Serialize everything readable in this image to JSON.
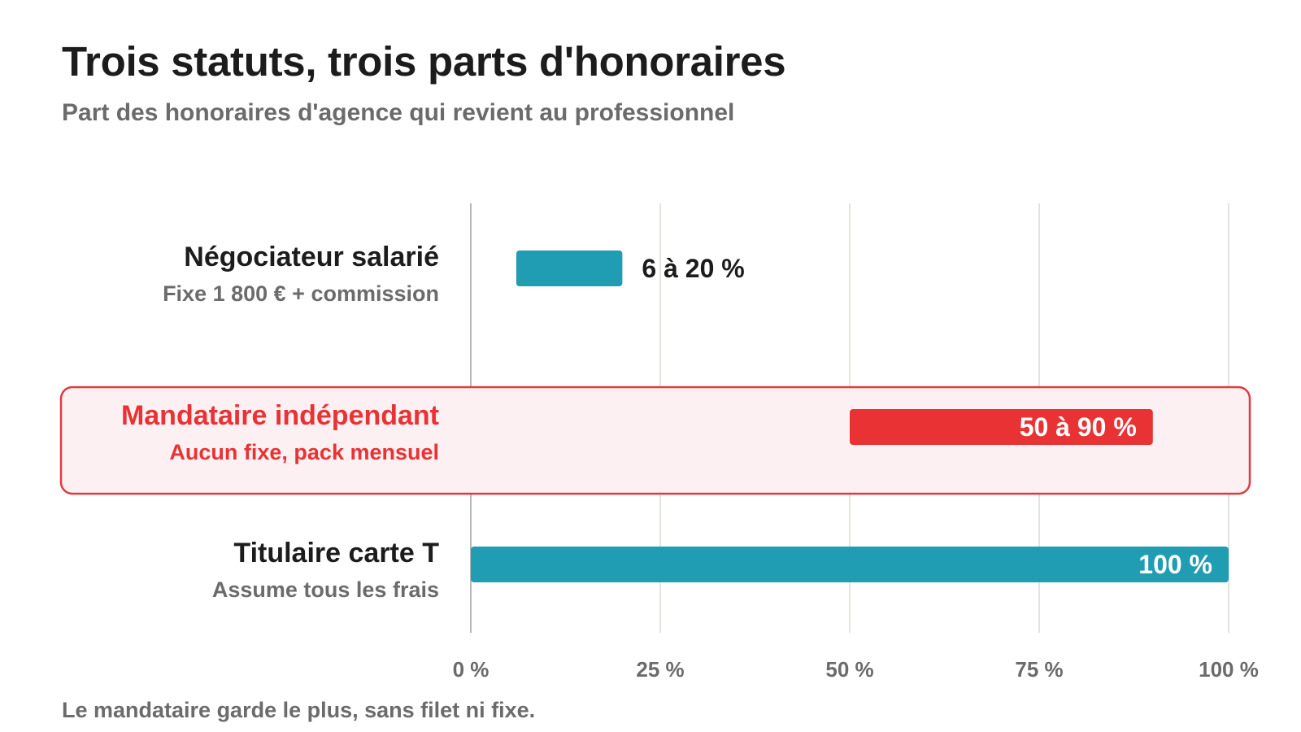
{
  "title": "Trois statuts, trois parts d'honoraires",
  "subtitle": "Part des honoraires d'agence qui revient au professionnel",
  "footnote": "Le mandataire garde le plus, sans filet ni fixe.",
  "colors": {
    "teal": "#209cb3",
    "red": "#e83233",
    "highlight_bg": "#fdf0f2",
    "highlight_border": "#e03a3e",
    "text_dark": "#1c1c1c",
    "text_gray": "#6b6b6b",
    "grid": "#e4e4df",
    "axis": "#b8b8b4"
  },
  "chart_data": {
    "type": "bar",
    "orientation": "horizontal",
    "bar_style": "range",
    "xlim": [
      0,
      100
    ],
    "xticks": [
      0,
      25,
      50,
      75,
      100
    ],
    "xtick_labels": [
      "0 %",
      "25 %",
      "50 %",
      "75 %",
      "100 %"
    ],
    "grid": true,
    "categories": [
      {
        "name": "Négociateur salarié",
        "sub": "Fixe 1 800 € + commission",
        "start": 6,
        "end": 20,
        "label": "6 à 20 %",
        "color": "teal",
        "highlight": false
      },
      {
        "name": "Mandataire indépendant",
        "sub": "Aucun fixe, pack mensuel",
        "start": 50,
        "end": 90,
        "label": "50 à 90 %",
        "color": "red",
        "highlight": true
      },
      {
        "name": "Titulaire carte T",
        "sub": "Assume tous les frais",
        "start": 0,
        "end": 100,
        "label": "100 %",
        "color": "teal",
        "highlight": false
      }
    ]
  }
}
